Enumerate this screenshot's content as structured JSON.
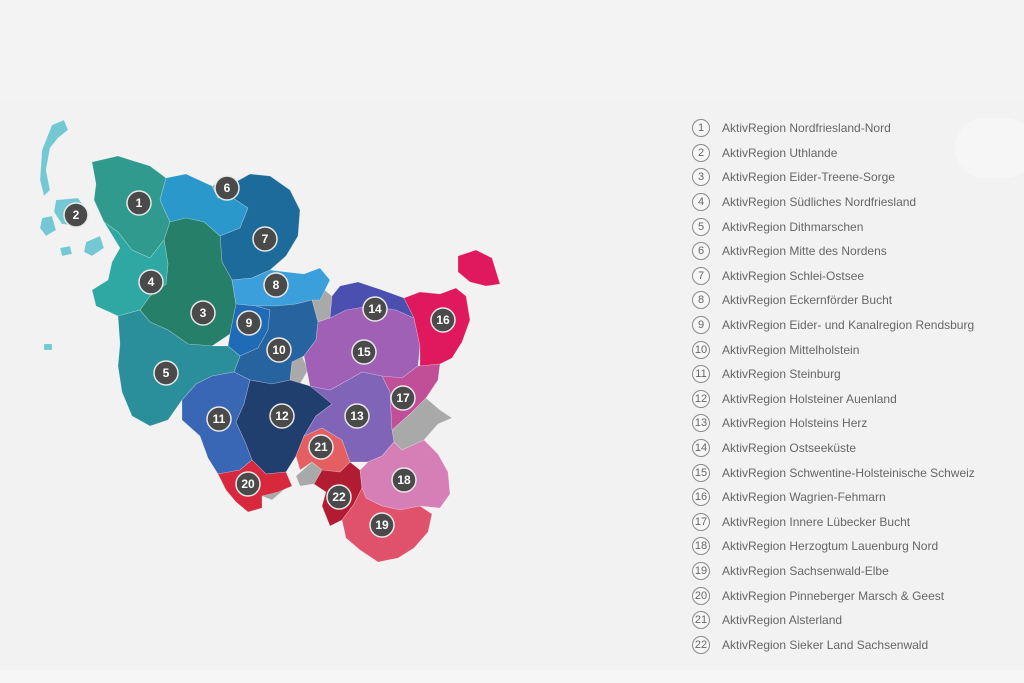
{
  "regions": [
    {
      "id": "1",
      "name": "AktivRegion Nordfriesland-Nord",
      "color": "#2f9a8d"
    },
    {
      "id": "2",
      "name": "AktivRegion Uthlande",
      "color": "#73c8d3"
    },
    {
      "id": "3",
      "name": "AktivRegion Eider-Treene-Sorge",
      "color": "#267f68"
    },
    {
      "id": "4",
      "name": "AktivRegion Südliches Nordfriesland",
      "color": "#2fa8a4"
    },
    {
      "id": "5",
      "name": "AktivRegion Dithmarschen",
      "color": "#2b8f9b"
    },
    {
      "id": "6",
      "name": "AktivRegion Mitte des Nordens",
      "color": "#2b98cc"
    },
    {
      "id": "7",
      "name": "AktivRegion Schlei-Ostsee",
      "color": "#1d6b9b"
    },
    {
      "id": "8",
      "name": "AktivRegion Eckernförder Bucht",
      "color": "#3a9fdb"
    },
    {
      "id": "9",
      "name": "AktivRegion Eider- und Kanalregion Rendsburg",
      "color": "#1f6bb6"
    },
    {
      "id": "10",
      "name": "AktivRegion Mittelholstein",
      "color": "#27649f"
    },
    {
      "id": "11",
      "name": "AktivRegion Steinburg",
      "color": "#3a66b6"
    },
    {
      "id": "12",
      "name": "AktivRegion Holsteiner Auenland",
      "color": "#213f6e"
    },
    {
      "id": "13",
      "name": "AktivRegion Holsteins Herz",
      "color": "#7f64b8"
    },
    {
      "id": "14",
      "name": "AktivRegion Ostseeküste",
      "color": "#4b4fb0"
    },
    {
      "id": "15",
      "name": "AktivRegion Schwentine-Holsteinische Schweiz",
      "color": "#a060b6"
    },
    {
      "id": "16",
      "name": "AktivRegion Wagrien-Fehmarn",
      "color": "#e0185d"
    },
    {
      "id": "17",
      "name": "AktivRegion Innere Lübecker Bucht",
      "color": "#c04f98"
    },
    {
      "id": "18",
      "name": "AktivRegion Herzogtum Lauenburg Nord",
      "color": "#d67fb6"
    },
    {
      "id": "19",
      "name": "AktivRegion Sachsenwald-Elbe",
      "color": "#e0516b"
    },
    {
      "id": "20",
      "name": "AktivRegion Pinneberger Marsch & Geest",
      "color": "#d8283e"
    },
    {
      "id": "21",
      "name": "AktivRegion Alsterland",
      "color": "#e45f62"
    },
    {
      "id": "22",
      "name": "AktivRegion Sieker Land Sachsenwald",
      "color": "#b11c32"
    }
  ],
  "colors": {
    "city_gray": "#a9a9a9",
    "marker_fill": "#4a4a4a"
  }
}
